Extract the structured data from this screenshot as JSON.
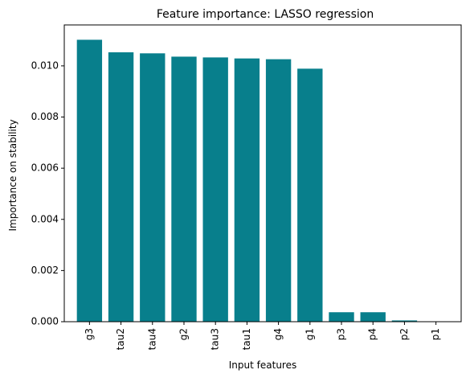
{
  "chart_data": {
    "type": "bar",
    "title": "Feature importance: LASSO regression",
    "xlabel": "Input features",
    "ylabel": "Importance on stability",
    "categories": [
      "g3",
      "tau2",
      "tau4",
      "g2",
      "tau3",
      "tau1",
      "g4",
      "g1",
      "p3",
      "p4",
      "p2",
      "p1"
    ],
    "values": [
      0.01102,
      0.01053,
      0.01049,
      0.01036,
      0.01033,
      0.01029,
      0.01026,
      0.00989,
      0.00037,
      0.00037,
      5e-05,
      0.0
    ],
    "ylim": [
      0,
      0.0116
    ],
    "yticks": [
      0.0,
      0.002,
      0.004,
      0.006,
      0.008,
      0.01
    ],
    "ytick_labels": [
      "0.000",
      "0.002",
      "0.004",
      "0.006",
      "0.008",
      "0.010"
    ],
    "bar_color": "#087f8c",
    "grid": false,
    "legend": "none"
  }
}
